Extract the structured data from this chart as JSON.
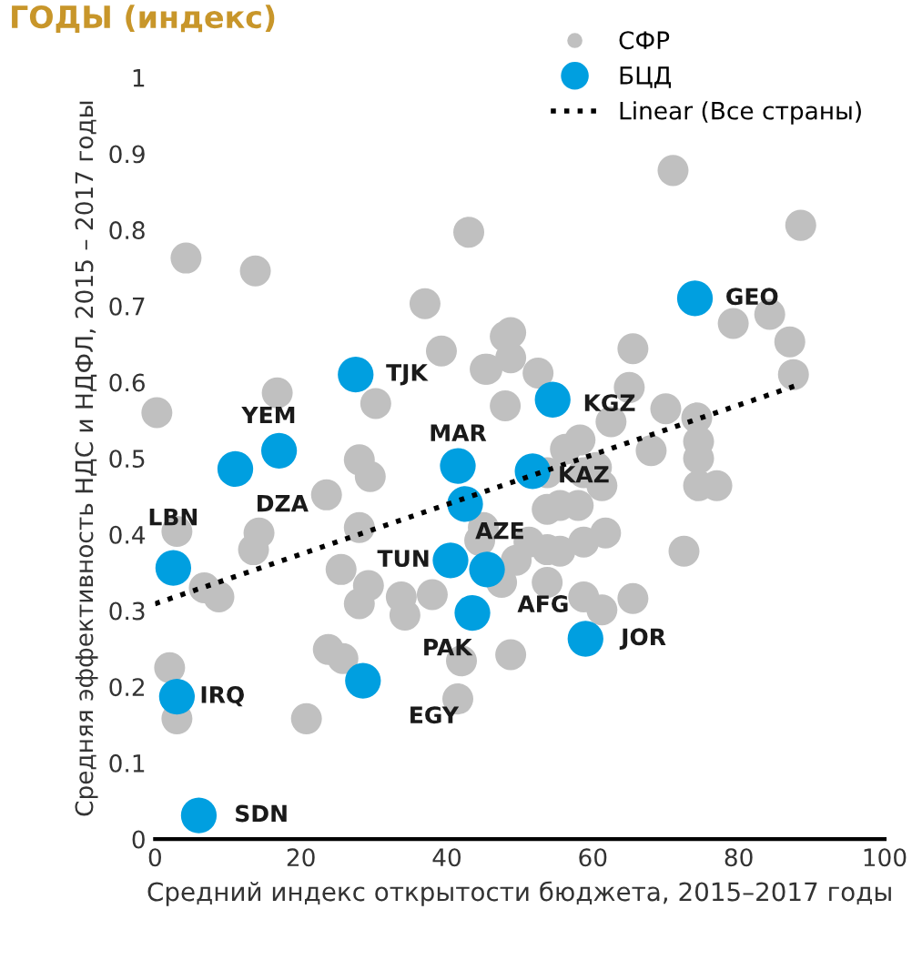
{
  "chart_data": {
    "type": "scatter",
    "title": "ГОДЫ (индекс)",
    "xlabel": "Средний индекс открытости бюджета, 2015–2017 годы",
    "ylabel": "Средняя эффективность НДС и НДФЛ, 2015 – 2017 годы",
    "xlim": [
      0,
      100
    ],
    "ylim": [
      0,
      1
    ],
    "xticks": [
      0,
      20,
      40,
      60,
      80,
      100
    ],
    "yticks": [
      0,
      0.1,
      0.2,
      0.3,
      0.4,
      0.5,
      0.6,
      0.7,
      0.8,
      0.9,
      1
    ],
    "grid": false,
    "legend": "top right",
    "marker": "circle",
    "series": [
      {
        "name": "СФР",
        "color": "#c0c0c0",
        "x": [
          4.25,
          13.75,
          43,
          37,
          39.25,
          45.25,
          48,
          48,
          16.75,
          30.25,
          0.25,
          28,
          29.5,
          23.5,
          28,
          14.25,
          13.5,
          3,
          6.75,
          8.75,
          25.5,
          29.25,
          28,
          33.75,
          34.25,
          38,
          23.75,
          25.75,
          2,
          3,
          20.75,
          41.5,
          42,
          48.75,
          53.75,
          55.5,
          61.75,
          72.5,
          53.75,
          58.75,
          61.25,
          65.5,
          55.5,
          58,
          61.25,
          74.5,
          77,
          44.5,
          71,
          88.5,
          79.25,
          84.25,
          87,
          87.5,
          65.5,
          48.75,
          48.75,
          45.5,
          52.5,
          65,
          70,
          74.25,
          74.5,
          74.5,
          62.5,
          58.25,
          56.25,
          68,
          60.5,
          53.75,
          51.25,
          49.5,
          58.75,
          45,
          47.5,
          58.75,
          53.75
        ],
        "values": [
          0.763,
          0.746,
          0.797,
          0.703,
          0.641,
          0.617,
          0.66,
          0.569,
          0.586,
          0.572,
          0.56,
          0.498,
          0.476,
          0.452,
          0.409,
          0.402,
          0.38,
          0.404,
          0.33,
          0.318,
          0.354,
          0.333,
          0.309,
          0.318,
          0.294,
          0.321,
          0.249,
          0.237,
          0.225,
          0.158,
          0.158,
          0.184,
          0.234,
          0.242,
          0.38,
          0.378,
          0.402,
          0.378,
          0.337,
          0.318,
          0.301,
          0.316,
          0.438,
          0.438,
          0.464,
          0.464,
          0.464,
          0.392,
          0.878,
          0.806,
          0.677,
          0.689,
          0.653,
          0.61,
          0.644,
          0.665,
          0.632,
          0.617,
          0.612,
          0.593,
          0.565,
          0.553,
          0.522,
          0.5,
          0.548,
          0.524,
          0.512,
          0.51,
          0.488,
          0.433,
          0.39,
          0.366,
          0.39,
          0.409,
          0.337,
          0.481,
          0.481
        ]
      },
      {
        "name": "БЦД",
        "color": "#009fe0",
        "x": [
          74,
          54.5,
          27.5,
          17,
          11,
          41.5,
          51.75,
          42.5,
          2.5,
          40.5,
          45.5,
          43.5,
          59,
          3,
          28.5,
          6
        ],
        "values": [
          0.71,
          0.577,
          0.61,
          0.51,
          0.486,
          0.49,
          0.483,
          0.44,
          0.356,
          0.366,
          0.354,
          0.297,
          0.263,
          0.187,
          0.208,
          0.031
        ]
      },
      {
        "name": "Linear (Все страны)",
        "type": "line",
        "color": "#000000",
        "line_style": "dotted",
        "marker": "none",
        "x": [
          0,
          88
        ],
        "values": [
          0.309,
          0.596
        ]
      }
    ],
    "annotations": [
      {
        "text": "GEO",
        "x": 74,
        "y": 0.71
      },
      {
        "text": "KGZ",
        "x": 54.5,
        "y": 0.577
      },
      {
        "text": "TJK",
        "x": 27.5,
        "y": 0.61
      },
      {
        "text": "YEM",
        "x": 17,
        "y": 0.51
      },
      {
        "text": "DZA",
        "x": 11,
        "y": 0.486
      },
      {
        "text": "MAR",
        "x": 41.5,
        "y": 0.49
      },
      {
        "text": "KAZ",
        "x": 51.75,
        "y": 0.483
      },
      {
        "text": "AZE",
        "x": 42.5,
        "y": 0.44
      },
      {
        "text": "LBN",
        "x": 2.5,
        "y": 0.356
      },
      {
        "text": "TUN",
        "x": 40.5,
        "y": 0.366
      },
      {
        "text": "AFG",
        "x": 45.5,
        "y": 0.354
      },
      {
        "text": "PAK",
        "x": 43.5,
        "y": 0.297
      },
      {
        "text": "JOR",
        "x": 59,
        "y": 0.263
      },
      {
        "text": "IRQ",
        "x": 3,
        "y": 0.187
      },
      {
        "text": "EGY",
        "x": 28.5,
        "y": 0.208
      },
      {
        "text": "SDN",
        "x": 6,
        "y": 0.031
      }
    ]
  }
}
